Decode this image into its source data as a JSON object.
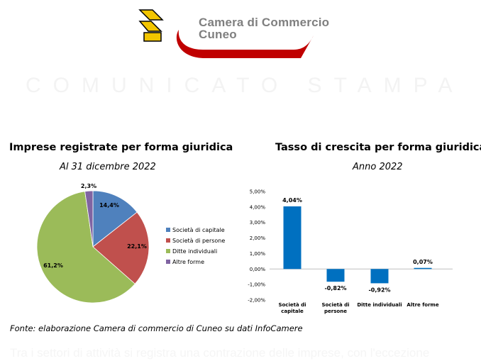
{
  "header": {
    "brand_line1": "Camera di Commercio",
    "brand_line2": "Cuneo",
    "watermark": "COMUNICATO STAMPA"
  },
  "colors": {
    "brand_red": "#c00000",
    "logo_yellow": "#f2c500",
    "blue": "#4f81bd",
    "red": "#c0504d",
    "green": "#9bbb59",
    "purple": "#8064a2",
    "bar_blue": "#0070c0"
  },
  "pie_chart": {
    "title": "Imprese registrate per forma giuridica",
    "subtitle": "Al 31 dicembre 2022"
  },
  "bar_chart": {
    "title": "Tasso di crescita per forma giuridica",
    "subtitle": "Anno 2022"
  },
  "chart_data": [
    {
      "type": "pie",
      "title": "Imprese registrate per forma giuridica",
      "subtitle": "Al 31 dicembre 2022",
      "legend_position": "right",
      "slices": [
        {
          "label": "Società di capitale",
          "value": 14.4,
          "display": "14,4%",
          "color": "#4f81bd"
        },
        {
          "label": "Società di persone",
          "value": 22.1,
          "display": "22,1%",
          "color": "#c0504d"
        },
        {
          "label": "Ditte individuali",
          "value": 61.2,
          "display": "61,2%",
          "color": "#9bbb59"
        },
        {
          "label": "Altre forme",
          "value": 2.3,
          "display": "2,3%",
          "color": "#8064a2"
        }
      ]
    },
    {
      "type": "bar",
      "title": "Tasso di crescita per forma giuridica",
      "subtitle": "Anno 2022",
      "categories": [
        [
          "Società di",
          "capitale"
        ],
        [
          "Società di",
          "persone"
        ],
        [
          "Ditte individuali"
        ],
        [
          "Altre forme"
        ]
      ],
      "values": [
        4.04,
        -0.82,
        -0.92,
        0.07
      ],
      "data_labels": [
        "4,04%",
        "-0,82%",
        "-0,92%",
        "0,07%"
      ],
      "ylim": [
        -2,
        5
      ],
      "yticks": [
        -2,
        -1,
        0,
        1,
        2,
        3,
        4,
        5
      ],
      "ytick_labels": [
        "-2,00%",
        "-1,00%",
        "0,00%",
        "1,00%",
        "2,00%",
        "3,00%",
        "4,00%",
        "5,00%"
      ],
      "bar_color": "#0070c0",
      "grid": false
    }
  ],
  "source": "Fonte: elaborazione Camera di commercio di Cuneo su dati InfoCamere",
  "footer_text": "Tra i settori di attività si registra una contrazione delle imprese, con l'eccezione"
}
